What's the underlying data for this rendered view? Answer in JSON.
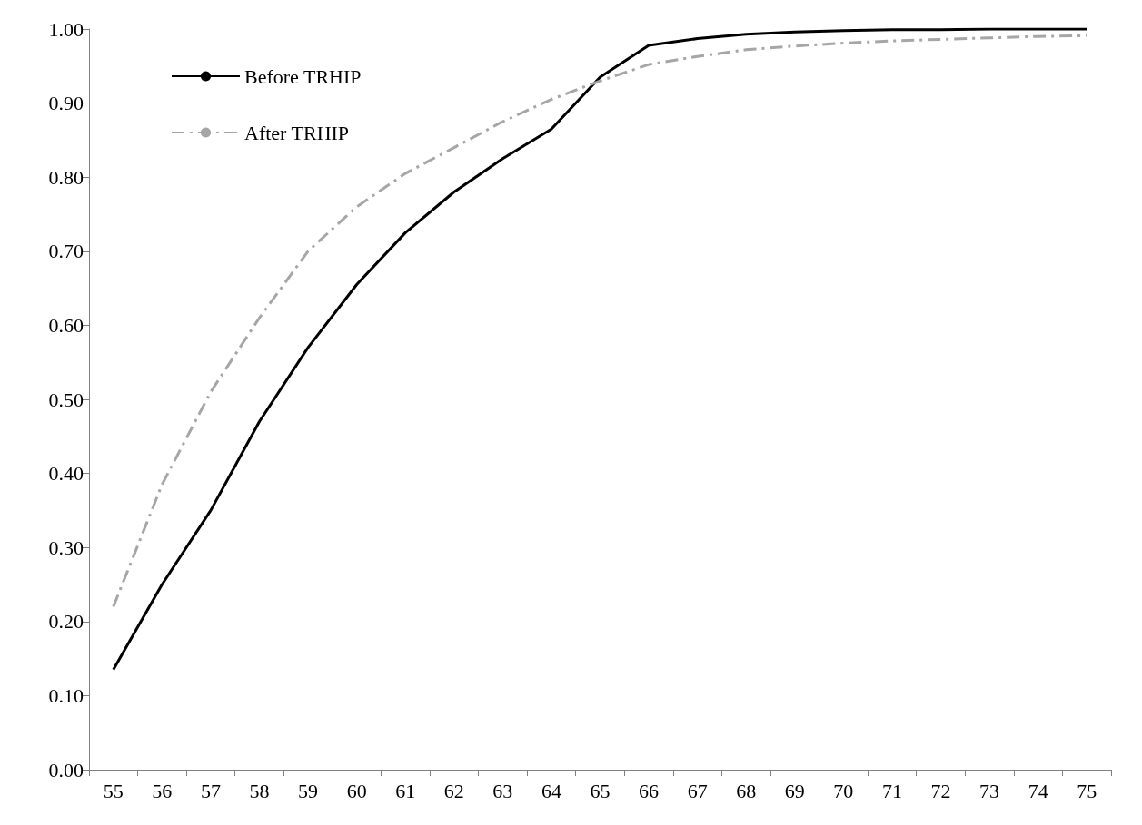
{
  "chart_data": {
    "type": "line",
    "categories": [
      "55",
      "56",
      "57",
      "58",
      "59",
      "60",
      "61",
      "62",
      "63",
      "64",
      "65",
      "66",
      "67",
      "68",
      "69",
      "70",
      "71",
      "72",
      "73",
      "74",
      "75"
    ],
    "series": [
      {
        "name": "Before TRHIP",
        "color": "#000000",
        "line_style": "solid",
        "values": [
          0.135,
          0.25,
          0.35,
          0.47,
          0.57,
          0.655,
          0.725,
          0.78,
          0.825,
          0.865,
          0.935,
          0.978,
          0.987,
          0.993,
          0.996,
          0.998,
          0.999,
          0.999,
          1.0,
          1.0,
          1.0
        ]
      },
      {
        "name": "After TRHIP",
        "color": "#a6a6a6",
        "line_style": "dashed",
        "values": [
          0.22,
          0.385,
          0.51,
          0.61,
          0.7,
          0.76,
          0.805,
          0.84,
          0.875,
          0.905,
          0.93,
          0.952,
          0.963,
          0.972,
          0.977,
          0.981,
          0.984,
          0.986,
          0.988,
          0.99,
          0.991
        ]
      }
    ],
    "ylim": [
      0,
      1
    ],
    "yticks": [
      {
        "value": 0,
        "label": "0.00"
      },
      {
        "value": 0.1,
        "label": "0.10"
      },
      {
        "value": 0.2,
        "label": "0.20"
      },
      {
        "value": 0.3,
        "label": "0.30"
      },
      {
        "value": 0.4,
        "label": "0.40"
      },
      {
        "value": 0.5,
        "label": "0.50"
      },
      {
        "value": 0.6,
        "label": "0.60"
      },
      {
        "value": 0.7,
        "label": "0.70"
      },
      {
        "value": 0.8,
        "label": "0.80"
      },
      {
        "value": 0.9,
        "label": "0.90"
      },
      {
        "value": 1,
        "label": "1.00"
      }
    ],
    "grid": false,
    "legend": "top left",
    "marker": "none"
  }
}
